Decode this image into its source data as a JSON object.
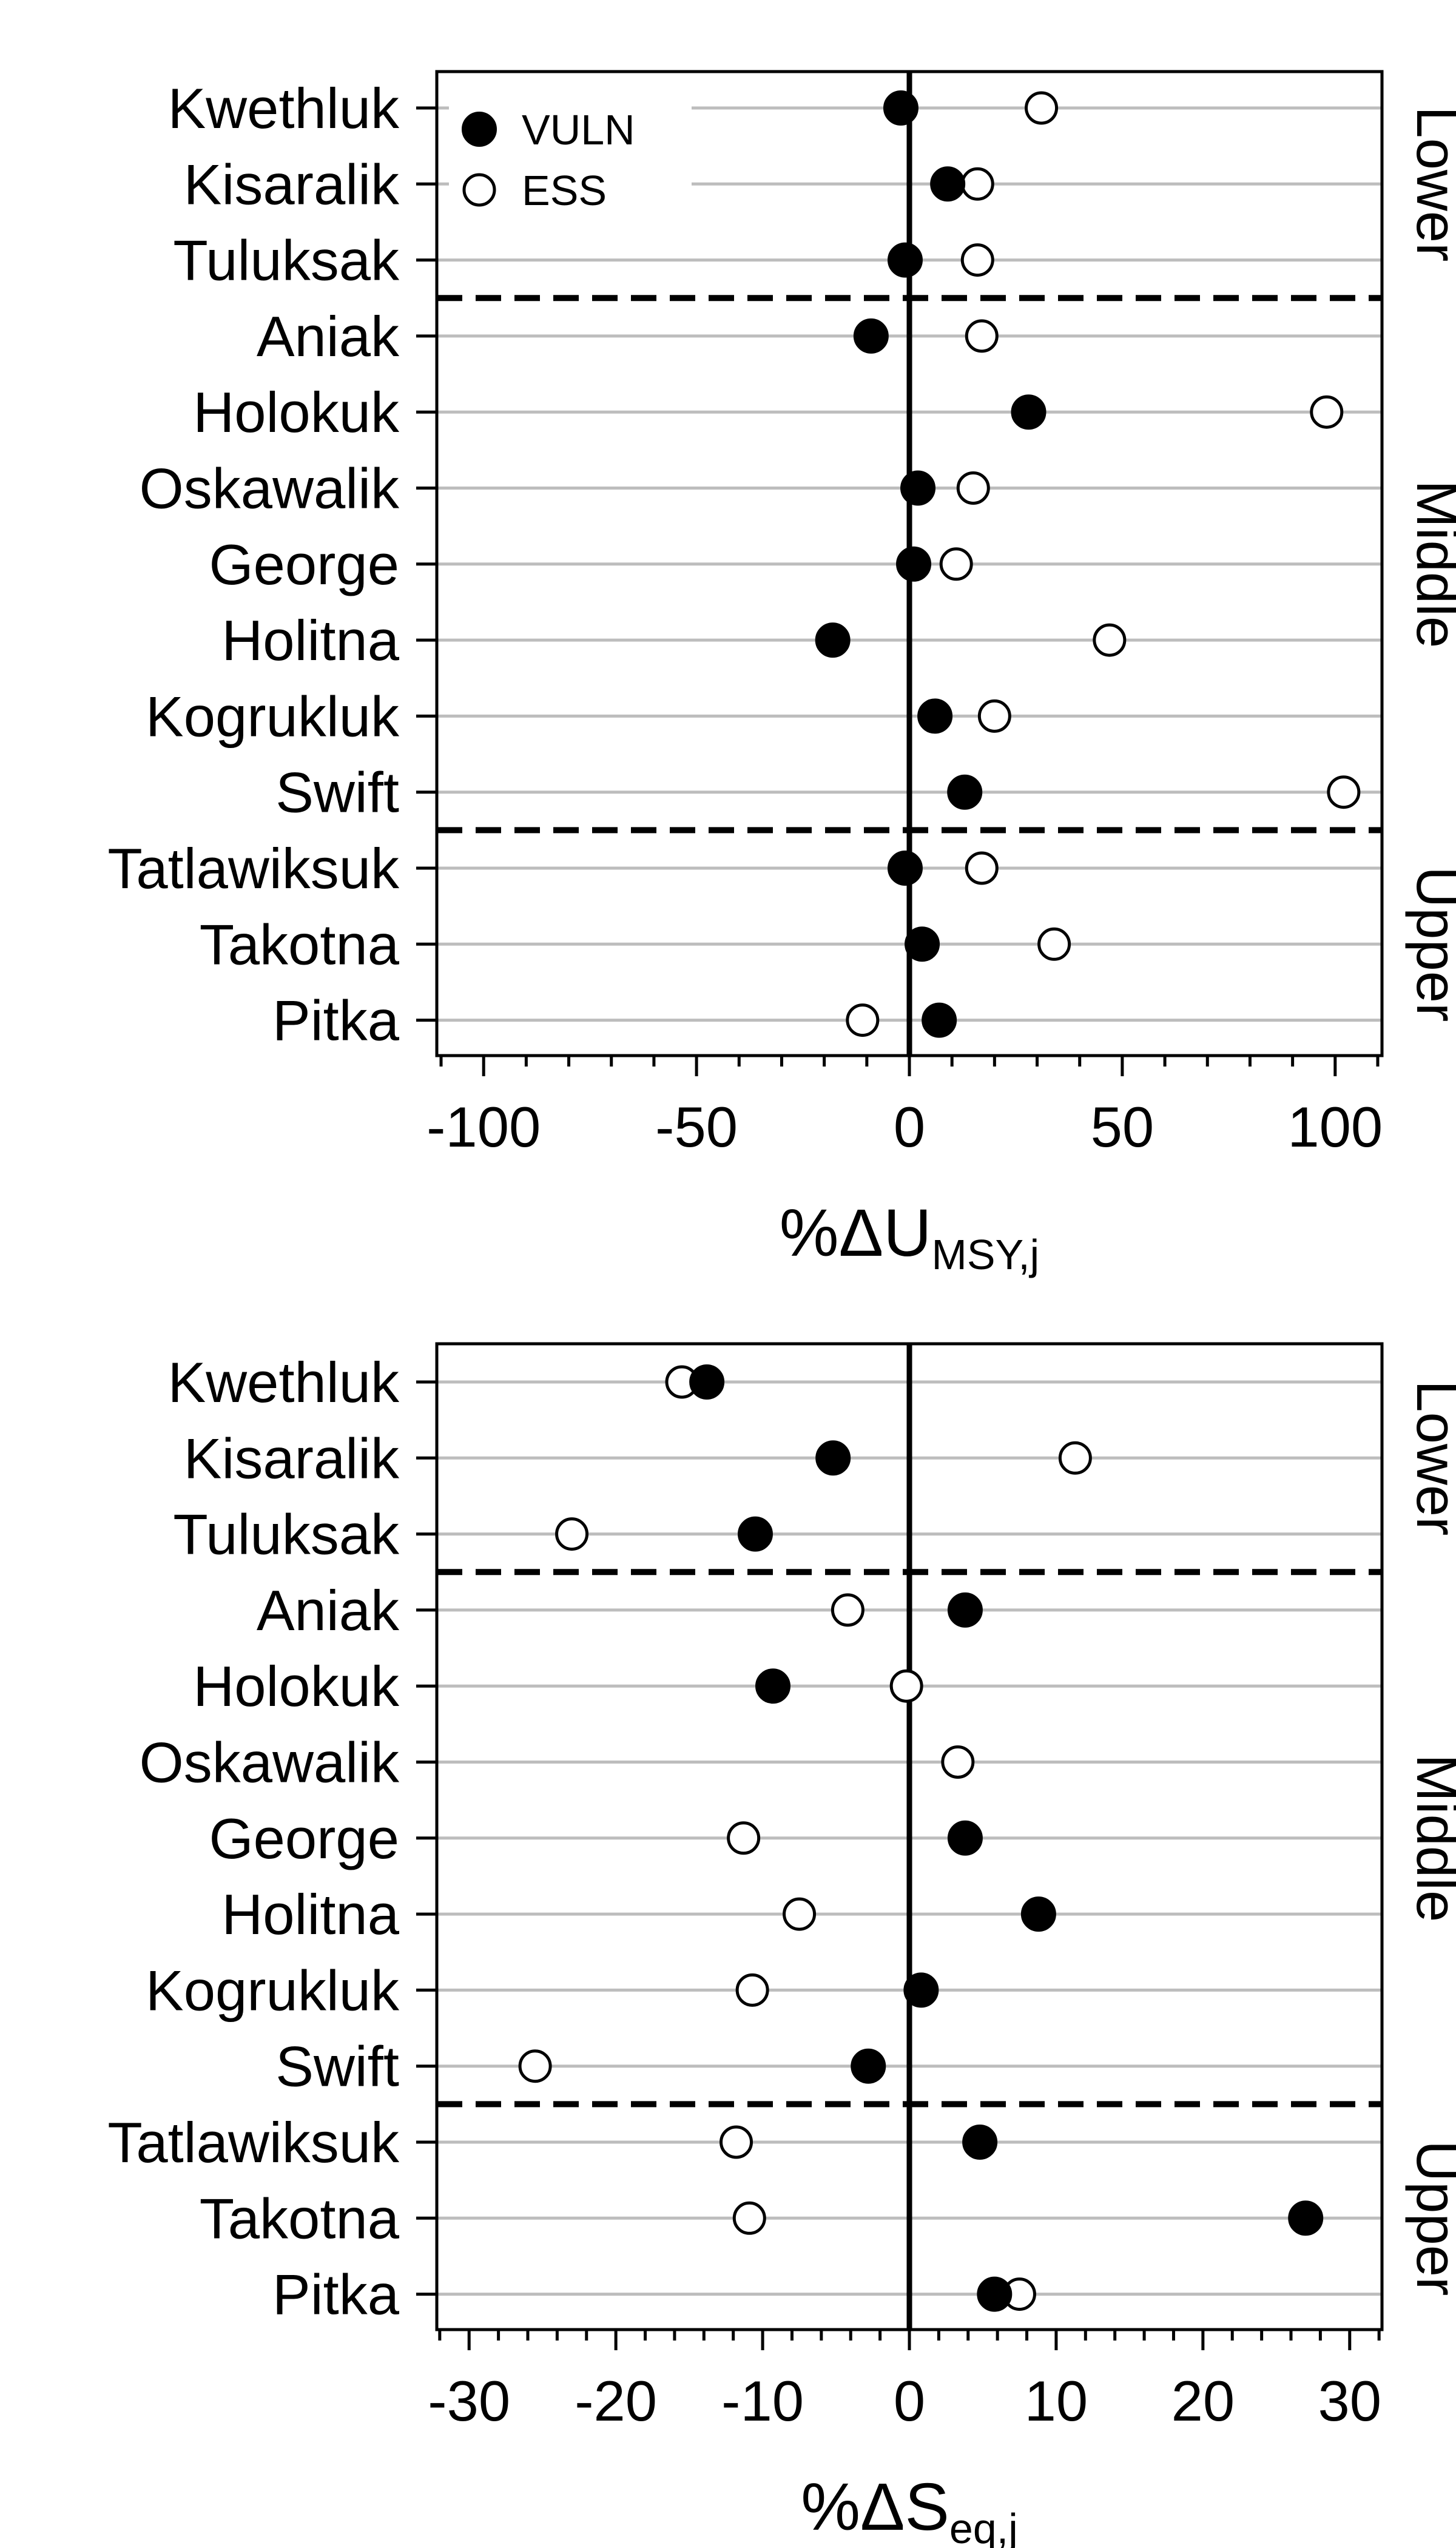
{
  "legend": {
    "vuln_label": "VULN",
    "ess_label": "ESS"
  },
  "colors": {
    "vuln_fill": "#000000",
    "ess_fill": "#ffffff",
    "gridline": "#bdbdbd",
    "axis": "#000000"
  },
  "chart_data": [
    {
      "type": "scatter",
      "categories": [
        "Kwethluk",
        "Kisaralik",
        "Tuluksak",
        "Aniak",
        "Holokuk",
        "Oskawalik",
        "George",
        "Holitna",
        "Kogrukluk",
        "Swift",
        "Tatlawiksuk",
        "Takotna",
        "Pitka"
      ],
      "series": [
        {
          "name": "VULN",
          "values": [
            -2,
            9,
            -1,
            -9,
            28,
            2,
            1,
            -18,
            6,
            13,
            -1,
            3,
            7
          ]
        },
        {
          "name": "ESS",
          "values": [
            31,
            16,
            16,
            17,
            98,
            15,
            11,
            47,
            20,
            102,
            17,
            34,
            -11
          ]
        }
      ],
      "xlabel_main": "%ΔU",
      "xlabel_sub": "MSY,j",
      "xticks": [
        -100,
        -50,
        0,
        50,
        100
      ],
      "xlim": [
        -111,
        111
      ],
      "regions": [
        {
          "label": "Lower",
          "count": 3
        },
        {
          "label": "Middle",
          "count": 7
        },
        {
          "label": "Upper",
          "count": 3
        }
      ],
      "legend": "top-left",
      "grid": "horizontal"
    },
    {
      "type": "scatter",
      "categories": [
        "Kwethluk",
        "Kisaralik",
        "Tuluksak",
        "Aniak",
        "Holokuk",
        "Oskawalik",
        "George",
        "Holitna",
        "Kogrukluk",
        "Swift",
        "Tatlawiksuk",
        "Takotna",
        "Pitka"
      ],
      "series": [
        {
          "name": "VULN",
          "values": [
            -13.8,
            -5.2,
            -10.5,
            3.8,
            -9.3,
            null,
            3.8,
            8.8,
            0.8,
            -2.8,
            4.8,
            27.0,
            5.8
          ]
        },
        {
          "name": "ESS",
          "values": [
            -15.5,
            11.3,
            -23.0,
            -4.2,
            -0.2,
            3.3,
            -11.3,
            -7.5,
            -10.7,
            -25.5,
            -11.8,
            -10.9,
            7.5
          ]
        }
      ],
      "xlabel_main": "%ΔS",
      "xlabel_sub": "eq,j",
      "xticks": [
        -30,
        -20,
        -10,
        0,
        10,
        20,
        30
      ],
      "xlim": [
        -32.2,
        32.2
      ],
      "regions": [
        {
          "label": "Lower",
          "count": 3
        },
        {
          "label": "Middle",
          "count": 7
        },
        {
          "label": "Upper",
          "count": 3
        }
      ],
      "legend": "none",
      "grid": "horizontal"
    }
  ]
}
